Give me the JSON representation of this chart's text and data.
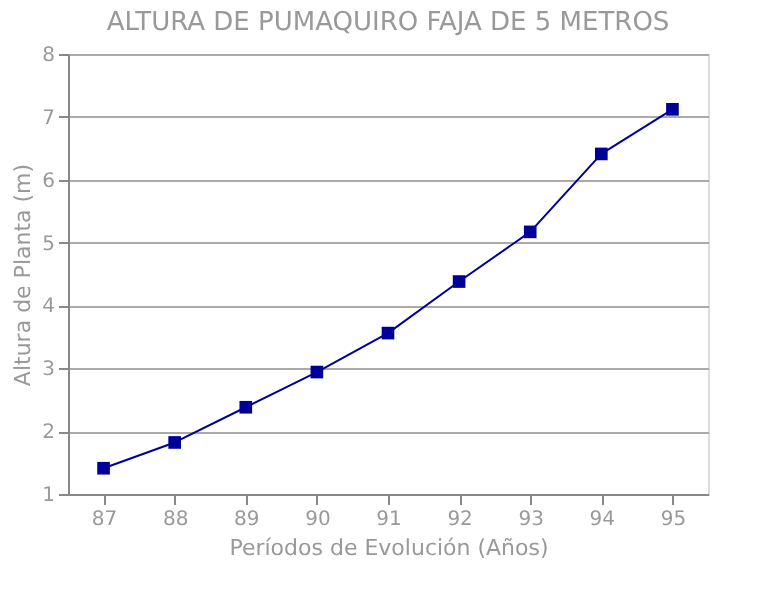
{
  "chart_data": {
    "type": "line",
    "title": "ALTURA DE PUMAQUIRO FAJA DE 5 METROS",
    "xlabel": "Períodos de Evolución (Años)",
    "ylabel": "Altura de Planta (m)",
    "categories": [
      "87",
      "88",
      "89",
      "90",
      "91",
      "92",
      "93",
      "94",
      "95"
    ],
    "series": [
      {
        "color": "#000099",
        "values": [
          1.41,
          1.82,
          2.38,
          2.94,
          3.56,
          4.38,
          5.17,
          6.41,
          7.12
        ]
      }
    ],
    "ylim": [
      1,
      8
    ],
    "yticks": [
      1,
      2,
      3,
      4,
      5,
      6,
      7,
      8
    ],
    "grid": "y",
    "marker": "square",
    "line_style": "solid",
    "legend": false
  }
}
